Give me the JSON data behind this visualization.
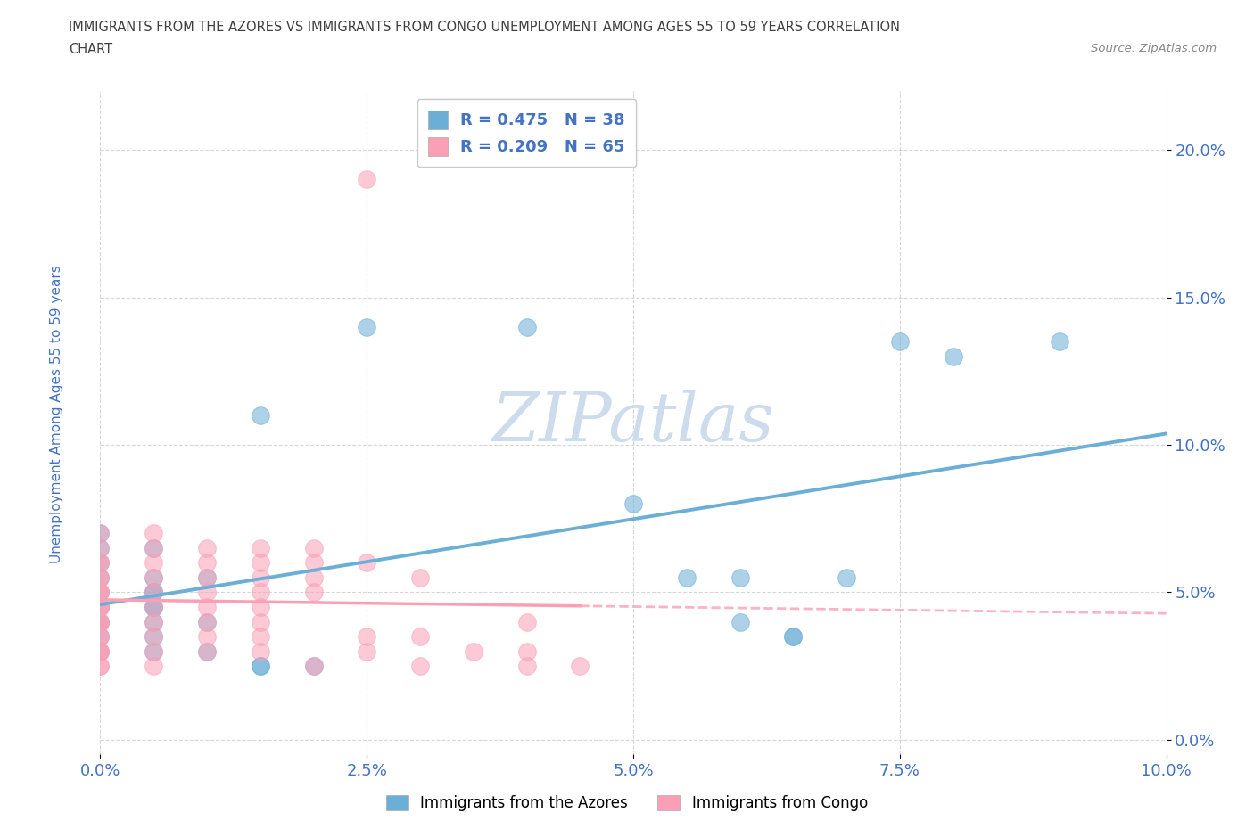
{
  "title_line1": "IMMIGRANTS FROM THE AZORES VS IMMIGRANTS FROM CONGO UNEMPLOYMENT AMONG AGES 55 TO 59 YEARS CORRELATION",
  "title_line2": "CHART",
  "source": "Source: ZipAtlas.com",
  "ylabel": "Unemployment Among Ages 55 to 59 years",
  "xlim": [
    0.0,
    0.1
  ],
  "ylim": [
    -0.005,
    0.22
  ],
  "yticks": [
    0.0,
    0.05,
    0.1,
    0.15,
    0.2
  ],
  "xticks": [
    0.0,
    0.025,
    0.05,
    0.075,
    0.1
  ],
  "xtick_labels": [
    "0.0%",
    "2.5%",
    "5.0%",
    "7.5%",
    "10.0%"
  ],
  "ytick_labels": [
    "0.0%",
    "5.0%",
    "10.0%",
    "15.0%",
    "20.0%"
  ],
  "azores_color": "#6baed6",
  "congo_color": "#fa9fb5",
  "azores_R": 0.475,
  "azores_N": 38,
  "congo_R": 0.209,
  "congo_N": 65,
  "azores_points": [
    [
      0.0,
      0.07
    ],
    [
      0.0,
      0.065
    ],
    [
      0.005,
      0.065
    ],
    [
      0.0,
      0.06
    ],
    [
      0.005,
      0.055
    ],
    [
      0.0,
      0.055
    ],
    [
      0.01,
      0.055
    ],
    [
      0.005,
      0.05
    ],
    [
      0.0,
      0.05
    ],
    [
      0.005,
      0.05
    ],
    [
      0.0,
      0.045
    ],
    [
      0.005,
      0.045
    ],
    [
      0.005,
      0.045
    ],
    [
      0.0,
      0.04
    ],
    [
      0.0,
      0.04
    ],
    [
      0.005,
      0.04
    ],
    [
      0.01,
      0.04
    ],
    [
      0.0,
      0.035
    ],
    [
      0.005,
      0.035
    ],
    [
      0.0,
      0.03
    ],
    [
      0.005,
      0.03
    ],
    [
      0.01,
      0.03
    ],
    [
      0.015,
      0.025
    ],
    [
      0.015,
      0.025
    ],
    [
      0.02,
      0.025
    ],
    [
      0.015,
      0.11
    ],
    [
      0.025,
      0.14
    ],
    [
      0.04,
      0.14
    ],
    [
      0.05,
      0.08
    ],
    [
      0.055,
      0.055
    ],
    [
      0.06,
      0.055
    ],
    [
      0.06,
      0.04
    ],
    [
      0.065,
      0.035
    ],
    [
      0.065,
      0.035
    ],
    [
      0.07,
      0.055
    ],
    [
      0.075,
      0.135
    ],
    [
      0.08,
      0.13
    ],
    [
      0.09,
      0.135
    ]
  ],
  "congo_points": [
    [
      0.0,
      0.07
    ],
    [
      0.0,
      0.065
    ],
    [
      0.0,
      0.06
    ],
    [
      0.0,
      0.06
    ],
    [
      0.0,
      0.055
    ],
    [
      0.0,
      0.055
    ],
    [
      0.0,
      0.05
    ],
    [
      0.0,
      0.05
    ],
    [
      0.0,
      0.05
    ],
    [
      0.0,
      0.045
    ],
    [
      0.0,
      0.045
    ],
    [
      0.0,
      0.045
    ],
    [
      0.0,
      0.04
    ],
    [
      0.0,
      0.04
    ],
    [
      0.0,
      0.04
    ],
    [
      0.0,
      0.035
    ],
    [
      0.0,
      0.035
    ],
    [
      0.0,
      0.03
    ],
    [
      0.0,
      0.03
    ],
    [
      0.0,
      0.03
    ],
    [
      0.0,
      0.025
    ],
    [
      0.0,
      0.025
    ],
    [
      0.005,
      0.07
    ],
    [
      0.005,
      0.065
    ],
    [
      0.005,
      0.06
    ],
    [
      0.005,
      0.055
    ],
    [
      0.005,
      0.05
    ],
    [
      0.005,
      0.045
    ],
    [
      0.005,
      0.04
    ],
    [
      0.005,
      0.035
    ],
    [
      0.005,
      0.03
    ],
    [
      0.005,
      0.025
    ],
    [
      0.01,
      0.065
    ],
    [
      0.01,
      0.06
    ],
    [
      0.01,
      0.055
    ],
    [
      0.01,
      0.05
    ],
    [
      0.01,
      0.045
    ],
    [
      0.01,
      0.04
    ],
    [
      0.01,
      0.035
    ],
    [
      0.01,
      0.03
    ],
    [
      0.015,
      0.065
    ],
    [
      0.015,
      0.06
    ],
    [
      0.015,
      0.055
    ],
    [
      0.015,
      0.05
    ],
    [
      0.015,
      0.045
    ],
    [
      0.015,
      0.04
    ],
    [
      0.015,
      0.035
    ],
    [
      0.015,
      0.03
    ],
    [
      0.02,
      0.065
    ],
    [
      0.02,
      0.06
    ],
    [
      0.02,
      0.055
    ],
    [
      0.02,
      0.05
    ],
    [
      0.02,
      0.025
    ],
    [
      0.025,
      0.06
    ],
    [
      0.025,
      0.035
    ],
    [
      0.025,
      0.03
    ],
    [
      0.03,
      0.055
    ],
    [
      0.03,
      0.035
    ],
    [
      0.03,
      0.025
    ],
    [
      0.035,
      0.03
    ],
    [
      0.04,
      0.04
    ],
    [
      0.04,
      0.03
    ],
    [
      0.04,
      0.025
    ],
    [
      0.045,
      0.025
    ],
    [
      0.025,
      0.19
    ]
  ],
  "background_color": "#ffffff",
  "grid_color": "#b0b0b0",
  "watermark": "ZIPatlas",
  "watermark_color": "#ccdcec",
  "tick_label_color": "#4472c4",
  "title_color": "#404040",
  "legend_R_color": "#4472c4",
  "azores_legend": "Immigrants from the Azores",
  "congo_legend": "Immigrants from Congo"
}
